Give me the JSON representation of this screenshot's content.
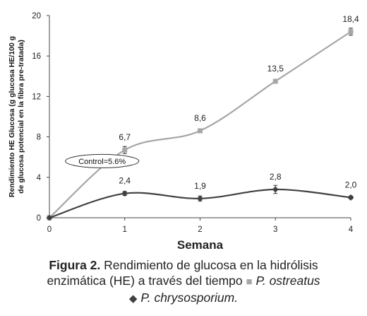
{
  "chart_data": {
    "type": "line",
    "x": [
      0,
      1,
      2,
      3,
      4
    ],
    "xlabel": "Semana",
    "ylabel_line1": "Rendimiento HE Glucosa (g glucosa HE/100 g",
    "ylabel_line2": "de glucosa potencial en la fibra pre-tratada)",
    "ylim": [
      0,
      20
    ],
    "xlim": [
      0,
      4
    ],
    "yticks": [
      0,
      4,
      8,
      12,
      16,
      20
    ],
    "xticks": [
      0,
      1,
      2,
      3,
      4
    ],
    "grid": false,
    "series": [
      {
        "name": "P. ostreatus",
        "marker": "square",
        "color": "#a6a6a6",
        "values": [
          0,
          6.7,
          8.6,
          13.5,
          18.4
        ],
        "labels": [
          "",
          "6,7",
          "8,6",
          "13,5",
          "18,4"
        ],
        "errors": [
          0,
          0.35,
          0.2,
          0.15,
          0.35
        ]
      },
      {
        "name": "P. chrysosporium",
        "marker": "diamond",
        "color": "#404040",
        "values": [
          0,
          2.4,
          1.9,
          2.8,
          2.0
        ],
        "labels": [
          "",
          "2,4",
          "1,9",
          "2,8",
          "2,0"
        ],
        "errors": [
          0,
          0.2,
          0.25,
          0.4,
          0.15
        ]
      }
    ],
    "annotation": "Control=5.6%",
    "annotation_at": [
      0.7,
      5.6
    ]
  },
  "caption": {
    "fig": "Figura 2.",
    "text1": " Rendimiento de glucosa en la hidrólisis",
    "text2": "enzimática (HE) a través del tiempo ",
    "sp1": "P. ostreatus",
    "sp2": "P. chrysosporium."
  }
}
